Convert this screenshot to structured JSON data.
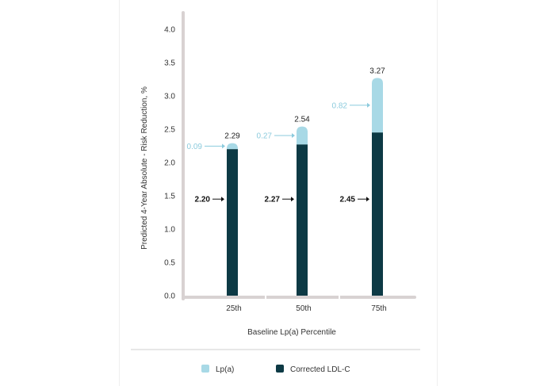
{
  "chart_data": {
    "type": "bar",
    "stacked": true,
    "categories": [
      "25th",
      "50th",
      "75th"
    ],
    "series": [
      {
        "name": "Corrected LDL-C",
        "values": [
          2.2,
          2.27,
          2.45
        ],
        "labels": [
          "2.20",
          "2.27",
          "2.45"
        ],
        "color": "#0d3a45"
      },
      {
        "name": "Lp(a)",
        "values": [
          0.09,
          0.27,
          0.82
        ],
        "labels": [
          "0.09",
          "0.27",
          "0.82"
        ],
        "color": "#a8d9e6"
      }
    ],
    "totals": [
      "2.29",
      "2.54",
      "3.27"
    ],
    "xlabel": "Baseline Lp(a) Percentile",
    "ylabel": "Predicted 4-Year Absolute - Risk Reduction, %",
    "ylim": [
      0,
      4.0
    ],
    "yticks": [
      "0.0",
      "0.5",
      "1.0",
      "1.5",
      "2.0",
      "2.5",
      "3.0",
      "3.5",
      "4.0"
    ],
    "legend_position": "bottom",
    "grid": false
  },
  "colors": {
    "axis": "#d8d2d2",
    "ldl": "#0d3a45",
    "lpa": "#a8d9e6",
    "lpa_label": "#8ccbdd",
    "ldl_label": "#111111",
    "divider": "#cfcfcf"
  }
}
